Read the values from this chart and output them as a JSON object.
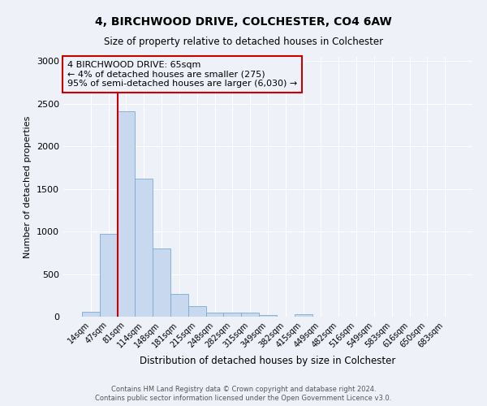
{
  "title": "4, BIRCHWOOD DRIVE, COLCHESTER, CO4 6AW",
  "subtitle": "Size of property relative to detached houses in Colchester",
  "xlabel": "Distribution of detached houses by size in Colchester",
  "ylabel": "Number of detached properties",
  "bar_labels": [
    "14sqm",
    "47sqm",
    "81sqm",
    "114sqm",
    "148sqm",
    "181sqm",
    "215sqm",
    "248sqm",
    "282sqm",
    "315sqm",
    "349sqm",
    "382sqm",
    "415sqm",
    "449sqm",
    "482sqm",
    "516sqm",
    "549sqm",
    "583sqm",
    "616sqm",
    "650sqm",
    "683sqm"
  ],
  "bar_values": [
    55,
    975,
    2410,
    1620,
    800,
    265,
    125,
    50,
    45,
    50,
    20,
    0,
    25,
    0,
    0,
    0,
    0,
    0,
    0,
    0,
    0
  ],
  "bar_color": "#c8d8ee",
  "bar_edgecolor": "#7baad4",
  "vline_x": 1.5,
  "vline_color": "#cc0000",
  "annotation_box_text": "4 BIRCHWOOD DRIVE: 65sqm\n← 4% of detached houses are smaller (275)\n95% of semi-detached houses are larger (6,030) →",
  "annotation_box_color": "#cc0000",
  "ylim": [
    0,
    3050
  ],
  "yticks": [
    0,
    500,
    1000,
    1500,
    2000,
    2500,
    3000
  ],
  "background_color": "#eef2f8",
  "plot_bg_color": "#eef2f8",
  "grid_color": "#ffffff",
  "footer_line1": "Contains HM Land Registry data © Crown copyright and database right 2024.",
  "footer_line2": "Contains public sector information licensed under the Open Government Licence v3.0."
}
